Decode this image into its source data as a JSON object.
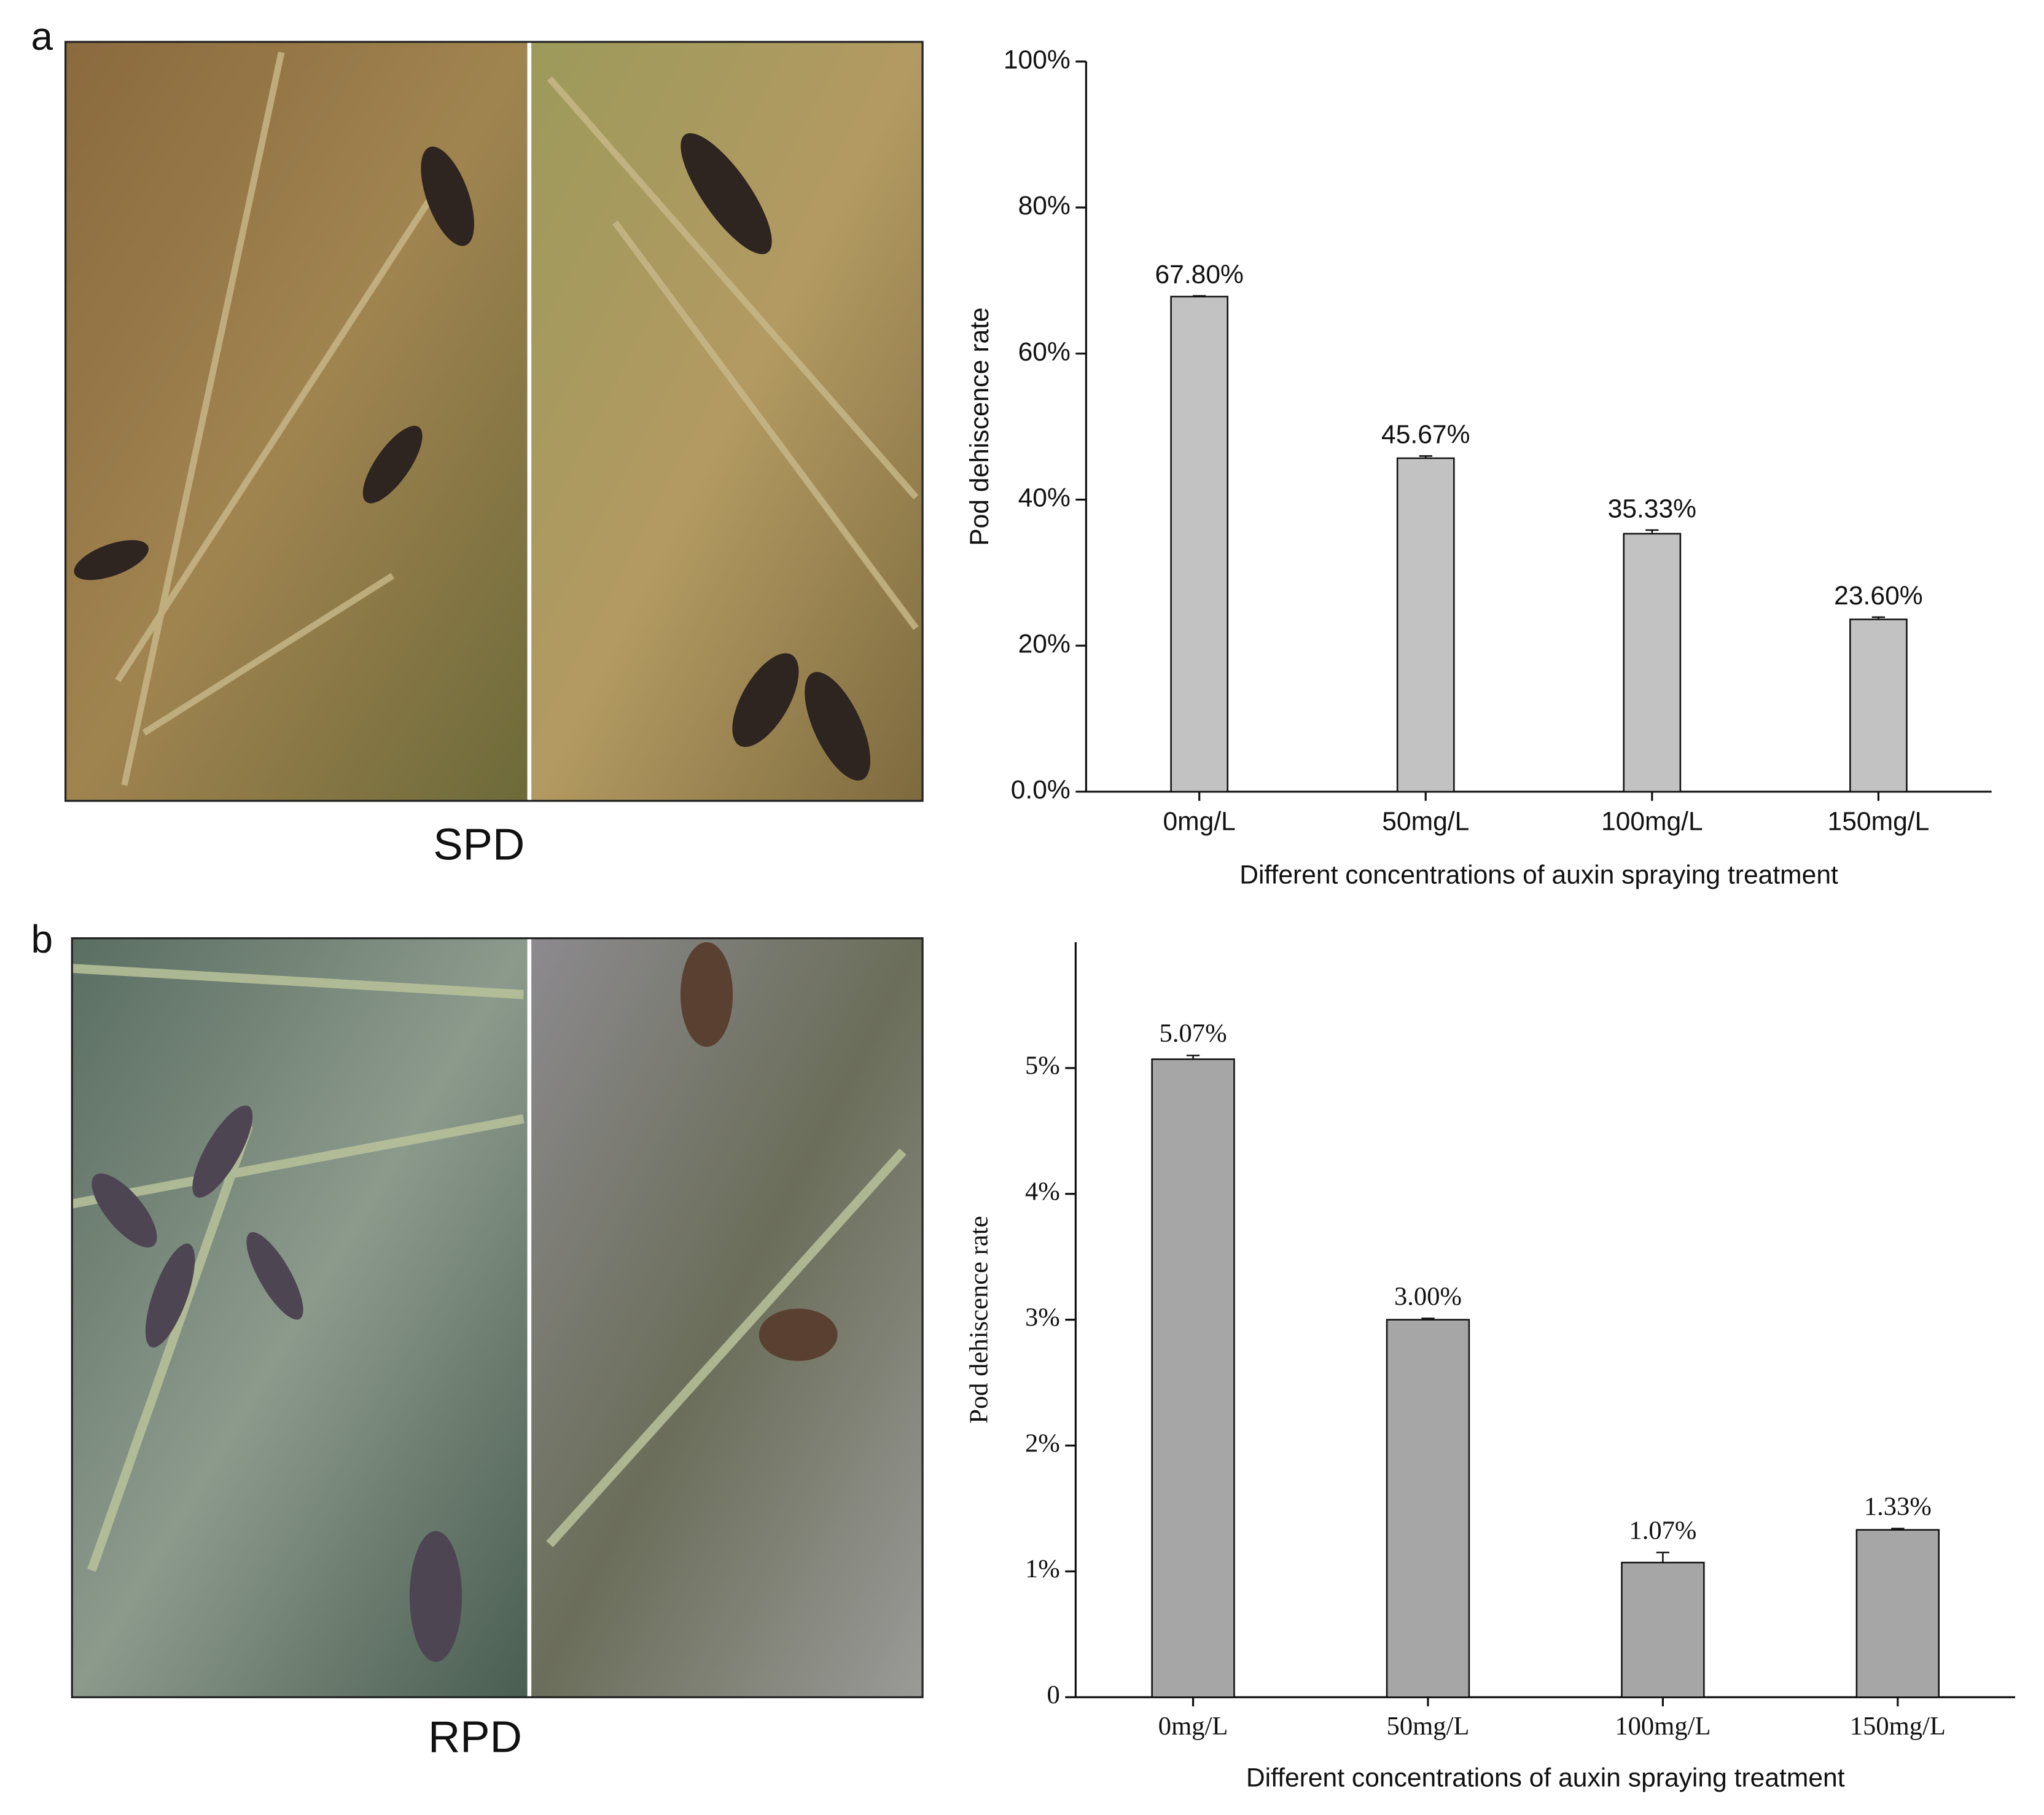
{
  "figure": {
    "panel_labels": [
      "a",
      "b"
    ],
    "photo_captions": [
      "SPD",
      "RPD"
    ]
  },
  "chart_data": [
    {
      "type": "bar",
      "font": "sans",
      "color": "#c2c2c2",
      "y_label": "Pod dehiscence rate",
      "x_label": "Different concentrations of auxin spraying treatment",
      "categories": [
        "0mg/L",
        "50mg/L",
        "100mg/L",
        "150mg/L"
      ],
      "values": [
        67.8,
        45.67,
        35.33,
        23.6
      ],
      "value_labels": [
        "67.80%",
        "45.67%",
        "35.33%",
        "23.60%"
      ],
      "errors": [
        0.1,
        0.3,
        0.5,
        0.3
      ],
      "ylim": [
        0,
        100
      ],
      "yticks": [
        {
          "value": 0,
          "label": "0.0%"
        },
        {
          "value": 20,
          "label": "20%"
        },
        {
          "value": 40,
          "label": "40%"
        },
        {
          "value": 60,
          "label": "60%"
        },
        {
          "value": 80,
          "label": "80%"
        },
        {
          "value": 100,
          "label": "100%"
        }
      ]
    },
    {
      "type": "bar",
      "font": "serif",
      "color": "#a6a6a6",
      "y_label": "Pod dehiscence rate",
      "x_label": "Different concentrations of auxin spraying treatment",
      "categories": [
        "0mg/L",
        "50mg/L",
        "100mg/L",
        "150mg/L"
      ],
      "values": [
        5.07,
        3.0,
        1.07,
        1.33
      ],
      "value_labels": [
        "5.07%",
        "3.00%",
        "1.07%",
        "1.33%"
      ],
      "errors": [
        0.03,
        0.01,
        0.08,
        0.01
      ],
      "ylim": [
        0,
        6
      ],
      "yticks": [
        0,
        {
          "value": 1,
          "label": "1%"
        },
        {
          "value": 2,
          "label": "2%"
        },
        {
          "value": 3,
          "label": "3%"
        },
        {
          "value": 4,
          "label": "4%"
        },
        {
          "value": 5,
          "label": "5%"
        }
      ]
    }
  ]
}
